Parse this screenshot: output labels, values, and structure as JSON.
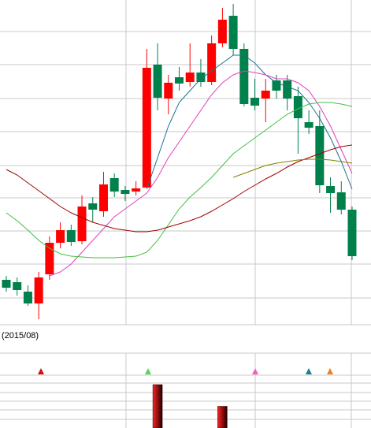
{
  "chart_data": {
    "type": "candlestick",
    "annotation": "(2015/08)",
    "ylim": [
      0,
      410
    ],
    "up_color": "#ff0000",
    "down_color": "#00804a",
    "open": [
      55,
      52,
      40,
      25,
      62,
      102,
      118,
      104,
      152,
      142,
      184,
      169,
      167,
      172,
      328,
      285,
      312,
      306,
      318,
      306,
      355,
      390,
      348,
      286,
      285,
      308,
      308,
      288,
      255,
      250,
      174,
      166,
      144
    ],
    "high": [
      60,
      58,
      48,
      65,
      110,
      128,
      125,
      162,
      160,
      192,
      190,
      174,
      180,
      348,
      355,
      315,
      325,
      355,
      335,
      365,
      400,
      405,
      355,
      310,
      310,
      315,
      315,
      300,
      270,
      270,
      185,
      180,
      148
    ],
    "low": [
      40,
      35,
      22,
      5,
      55,
      95,
      98,
      100,
      128,
      135,
      160,
      155,
      162,
      172,
      270,
      265,
      295,
      300,
      300,
      302,
      350,
      340,
      275,
      270,
      255,
      285,
      270,
      215,
      240,
      165,
      140,
      138,
      80
    ],
    "close": [
      45,
      42,
      25,
      58,
      102,
      118,
      103,
      148,
      144,
      176,
      167,
      164,
      171,
      324,
      286,
      305,
      304,
      318,
      306,
      355,
      385,
      348,
      278,
      276,
      295,
      295,
      285,
      260,
      248,
      175,
      165,
      144,
      85
    ],
    "series": [
      {
        "color": "#1f6f8f",
        "values": [
          null,
          null,
          null,
          null,
          null,
          null,
          null,
          null,
          null,
          null,
          null,
          null,
          null,
          170,
          210,
          250,
          280,
          295,
          310,
          320,
          330,
          340,
          340,
          330,
          315,
          305,
          300,
          295,
          280,
          260,
          235,
          205,
          170
        ]
      },
      {
        "color": "#e040c0",
        "values": [
          null,
          null,
          null,
          null,
          60,
          65,
          75,
          90,
          105,
          120,
          135,
          145,
          155,
          165,
          185,
          210,
          230,
          250,
          270,
          290,
          305,
          315,
          320,
          318,
          315,
          310,
          310,
          305,
          295,
          275,
          250,
          220,
          190
        ]
      },
      {
        "color": "#40c040",
        "values": [
          140,
          130,
          118,
          105,
          95,
          88,
          85,
          84,
          83,
          83,
          83,
          84,
          85,
          90,
          105,
          125,
          145,
          160,
          172,
          185,
          200,
          215,
          225,
          235,
          245,
          255,
          265,
          272,
          278,
          280,
          280,
          278,
          275
        ]
      },
      {
        "color": "#a00000",
        "values": [
          195,
          188,
          178,
          168,
          158,
          148,
          140,
          134,
          128,
          124,
          120,
          118,
          116,
          116,
          118,
          122,
          126,
          130,
          135,
          142,
          150,
          158,
          167,
          175,
          183,
          190,
          198,
          205,
          210,
          215,
          220,
          224,
          226
        ]
      },
      {
        "color": "#808000",
        "values": [
          null,
          null,
          null,
          null,
          null,
          null,
          null,
          null,
          null,
          null,
          null,
          null,
          null,
          null,
          null,
          null,
          null,
          null,
          null,
          null,
          null,
          185,
          190,
          195,
          200,
          203,
          205,
          207,
          208,
          208,
          207,
          205,
          203
        ]
      }
    ],
    "volume_ylim": [
      0,
      58
    ],
    "volume": [
      null,
      null,
      null,
      null,
      null,
      null,
      null,
      null,
      null,
      null,
      null,
      null,
      null,
      null,
      56,
      null,
      null,
      null,
      null,
      null,
      28,
      null,
      null,
      null,
      null,
      null,
      null,
      null,
      null,
      null,
      null,
      null,
      null
    ]
  }
}
